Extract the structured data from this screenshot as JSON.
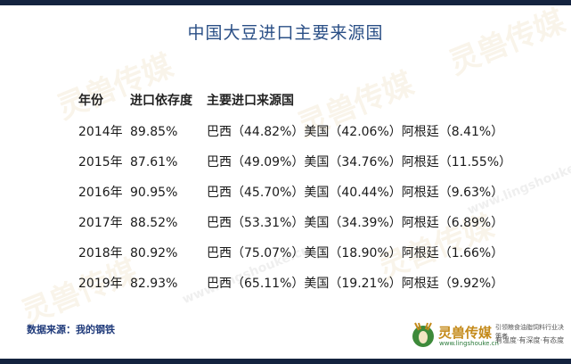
{
  "title": "中国大豆进口主要来源国",
  "headers": {
    "year": "年份",
    "dependency": "进口依存度",
    "sources": "主要进口来源国"
  },
  "rows": [
    {
      "year": "2014年",
      "dependency": "89.85%",
      "sources": "巴西（44.82%）美国（42.06%）阿根廷（8.41%）"
    },
    {
      "year": "2015年",
      "dependency": "87.61%",
      "sources": "巴西（49.09%）美国（34.76%）阿根廷（11.55%）"
    },
    {
      "year": "2016年",
      "dependency": "90.95%",
      "sources": "巴西（45.70%）美国（40.44%）阿根廷（9.63%）"
    },
    {
      "year": "2017年",
      "dependency": "88.52%",
      "sources": "巴西（53.31%）美国（34.39%）阿根廷（6.89%）"
    },
    {
      "year": "2018年",
      "dependency": "80.92%",
      "sources": "巴西（75.07%）美国（18.90%）阿根廷（1.66%）"
    },
    {
      "year": "2019年",
      "dependency": "82.93%",
      "sources": "巴西（65.11%）美国（19.21%）阿根廷（9.92%）"
    }
  ],
  "source_note": "数据来源：我的钢铁",
  "brand": {
    "name": "灵兽传媒",
    "url": "www.lingshouke.cn",
    "tagline_top": "引领粮食油脂饲料行业决策者",
    "tagline_bottom": "有温度·有深度·有态度"
  },
  "watermark": {
    "text": "灵兽传媒",
    "url": "www.lingshouke.cn"
  },
  "colors": {
    "bar": "#14233f",
    "title": "#2a4f86",
    "brand": "#c48a1a"
  }
}
